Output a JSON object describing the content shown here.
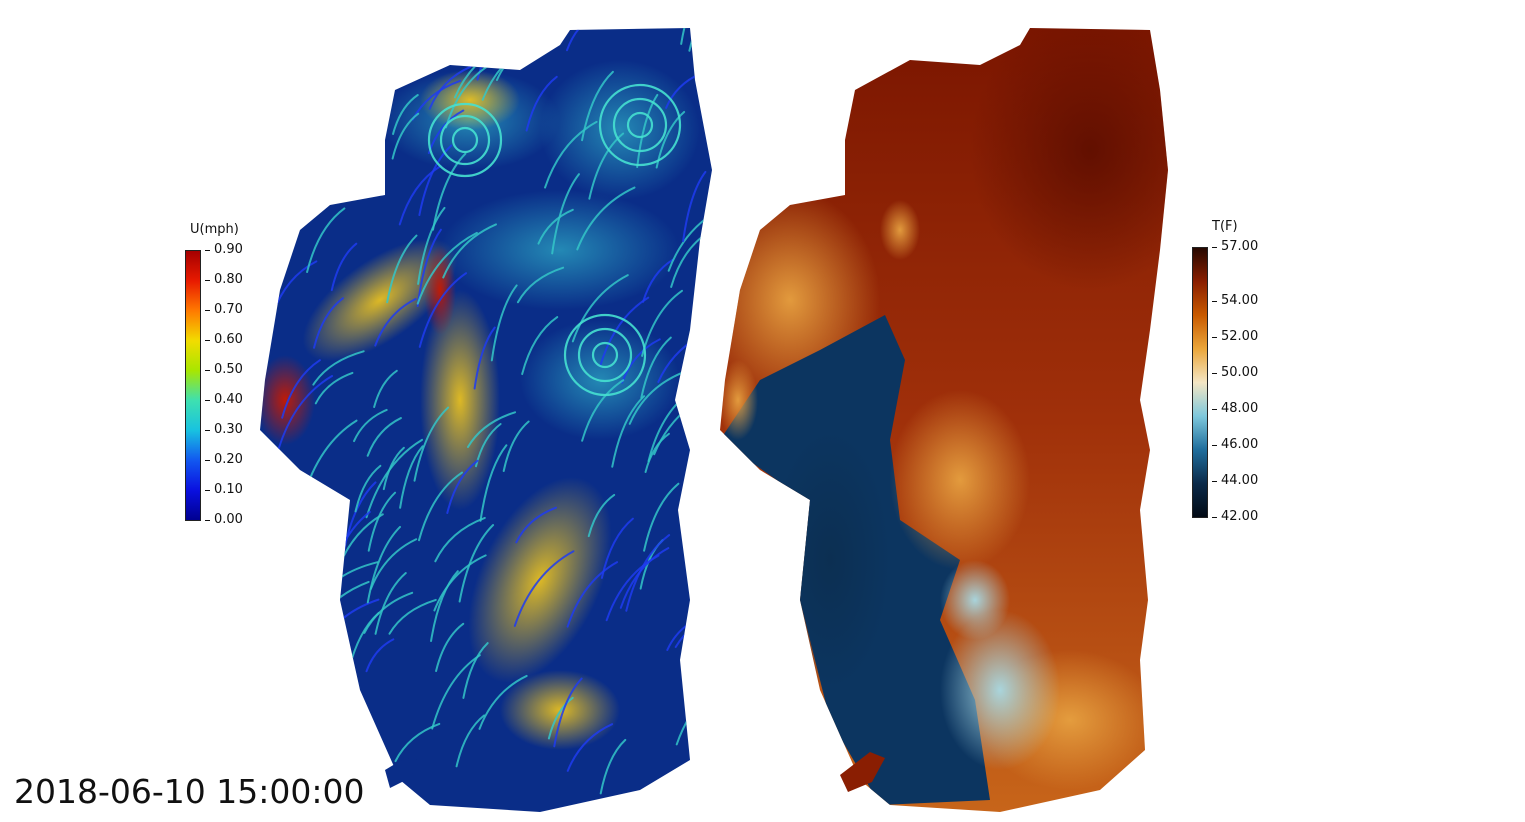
{
  "velocity_legend": {
    "title": "U(mph)",
    "ticks": [
      "0.90",
      "0.80",
      "0.70",
      "0.60",
      "0.50",
      "0.40",
      "0.30",
      "0.20",
      "0.10",
      "0.00"
    ],
    "colors": [
      "#a50000",
      "#e81a00",
      "#ff7a00",
      "#f2dc00",
      "#a8e600",
      "#3ee0b0",
      "#18c2e0",
      "#1258f0",
      "#0a10e0",
      "#000090"
    ]
  },
  "temperature_legend": {
    "title": "T(F)",
    "ticks": [
      "57.00",
      "54.00",
      "52.00",
      "50.00",
      "48.00",
      "46.00",
      "44.00",
      "42.00"
    ],
    "colors": [
      "#260800",
      "#8a1f00",
      "#c85a00",
      "#eba63a",
      "#f4e6c4",
      "#7ec8dc",
      "#1f6d9c",
      "#0b2a4a",
      "#020a14"
    ]
  },
  "timestamp": "2018-06-10 15:00:00",
  "colors": {
    "velocity_background": "#0a2d88",
    "velocity_fast": "#e8c020",
    "velocity_streamline": "#34c6c8",
    "temperature_warm": "#8a1e02",
    "temperature_mid": "#d88a20",
    "temperature_cold": "#0e3a62"
  }
}
